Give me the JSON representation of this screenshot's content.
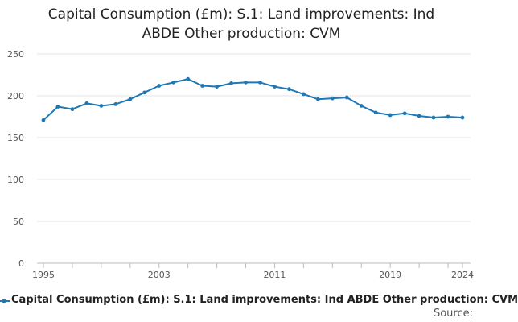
{
  "chart_data": {
    "type": "line",
    "title": "Capital Consumption (£m): S.1: Land improvements: Ind ABDE Other production: CVM",
    "title_lines": [
      "Capital Consumption (£m): S.1: Land improvements: Ind",
      "ABDE Other production: CVM"
    ],
    "xlabel": "",
    "ylabel": "",
    "ylim": [
      0,
      250
    ],
    "yticks": [
      0,
      50,
      100,
      150,
      200,
      250
    ],
    "xlim": [
      1995,
      2024
    ],
    "xtick_labels": [
      1995,
      2003,
      2011,
      2019,
      2024
    ],
    "x_minor_ticks": [
      1995,
      1997,
      1999,
      2001,
      2003,
      2005,
      2007,
      2009,
      2011,
      2013,
      2015,
      2017,
      2019,
      2021,
      2023,
      2024
    ],
    "grid": true,
    "legend_position": "bottom",
    "series": [
      {
        "name": "Capital Consumption (£m): S.1: Land improvements: Ind ABDE Other production: CVM",
        "color": "#1f78b4",
        "x": [
          1995,
          1996,
          1997,
          1998,
          1999,
          2000,
          2001,
          2002,
          2003,
          2004,
          2005,
          2006,
          2007,
          2008,
          2009,
          2010,
          2011,
          2012,
          2013,
          2014,
          2015,
          2016,
          2017,
          2018,
          2019,
          2020,
          2021,
          2022,
          2023,
          2024
        ],
        "values": [
          171,
          187,
          184,
          191,
          188,
          190,
          196,
          204,
          212,
          216,
          220,
          212,
          211,
          215,
          216,
          216,
          211,
          208,
          202,
          196,
          197,
          198,
          188,
          180,
          177,
          179,
          176,
          174,
          175,
          174
        ]
      }
    ]
  },
  "source_label": "Source:"
}
